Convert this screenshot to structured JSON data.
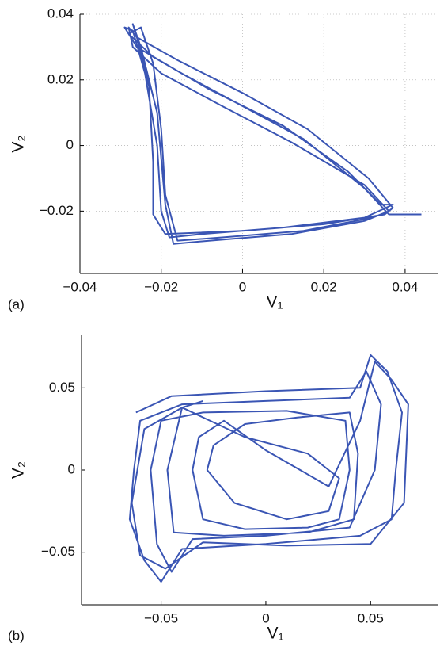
{
  "chart_data": [
    {
      "type": "line",
      "panel_label": "(a)",
      "x_label": "V₁",
      "y_label": "V₂",
      "color": "#3a55b4",
      "grid": true,
      "xlim": [
        -0.04,
        0.048
      ],
      "ylim": [
        -0.039,
        0.04
      ],
      "xticks": [
        {
          "value": -0.04,
          "label": "−0.04"
        },
        {
          "value": -0.02,
          "label": "−0.02"
        },
        0,
        0.02,
        0.04
      ],
      "yticks": [
        {
          "value": -0.02,
          "label": "−0.02"
        },
        0,
        0.02,
        0.04
      ],
      "x": [
        0.044,
        0.036,
        0.03,
        0.015,
        0.0,
        -0.015,
        -0.026,
        -0.029,
        -0.027,
        -0.024,
        -0.021,
        -0.02,
        -0.018,
        -0.01,
        0.01,
        0.03,
        0.037,
        0.034,
        0.026,
        0.01,
        -0.008,
        -0.022,
        -0.028,
        -0.025,
        -0.022,
        -0.02,
        -0.019,
        -0.016,
        -0.005,
        0.015,
        0.032,
        0.036,
        0.03,
        0.012,
        -0.005,
        -0.02,
        -0.027,
        -0.028,
        -0.026,
        -0.023,
        -0.022,
        -0.022,
        -0.019,
        0.0,
        0.02,
        0.035,
        0.037,
        0.031,
        0.016,
        0.0,
        -0.016,
        -0.026,
        -0.027,
        -0.025,
        -0.021,
        -0.019,
        -0.017,
        -0.008,
        0.012,
        0.03,
        0.034
      ],
      "values": [
        -0.021,
        -0.021,
        -0.013,
        0.002,
        0.012,
        0.022,
        0.03,
        0.036,
        0.035,
        0.022,
        0.0,
        -0.02,
        -0.028,
        -0.027,
        -0.025,
        -0.022,
        -0.018,
        -0.018,
        -0.008,
        0.006,
        0.017,
        0.027,
        0.034,
        0.036,
        0.025,
        0.005,
        -0.015,
        -0.029,
        -0.028,
        -0.026,
        -0.022,
        -0.02,
        -0.012,
        0.001,
        0.012,
        0.022,
        0.03,
        0.036,
        0.033,
        0.018,
        -0.005,
        -0.021,
        -0.027,
        -0.026,
        -0.024,
        -0.021,
        -0.019,
        -0.01,
        0.005,
        0.016,
        0.026,
        0.033,
        0.037,
        0.03,
        0.01,
        -0.018,
        -0.03,
        -0.029,
        -0.027,
        -0.023,
        -0.021
      ]
    },
    {
      "type": "line",
      "panel_label": "(b)",
      "x_label": "V₁",
      "y_label": "V₂",
      "color": "#3a55b4",
      "grid": false,
      "xlim": [
        -0.088,
        0.082
      ],
      "ylim": [
        -0.082,
        0.082
      ],
      "xticks": [
        {
          "value": -0.05,
          "label": "−0.05"
        },
        0,
        0.05
      ],
      "yticks": [
        {
          "value": -0.05,
          "label": "−0.05"
        },
        0,
        0.05
      ],
      "x": [
        -0.062,
        -0.045,
        0.0,
        0.045,
        0.05,
        0.058,
        0.065,
        0.062,
        0.06,
        0.045,
        0.0,
        -0.04,
        -0.05,
        -0.058,
        -0.065,
        -0.063,
        -0.06,
        -0.04,
        0.0,
        0.04,
        0.048,
        0.055,
        0.052,
        0.04,
        0.0,
        -0.035,
        -0.045,
        -0.052,
        -0.055,
        -0.05,
        -0.03,
        0.01,
        0.038,
        0.04,
        0.035,
        0.02,
        -0.01,
        -0.03,
        -0.035,
        -0.032,
        -0.02,
        0.0,
        0.03,
        0.045,
        0.052,
        0.06,
        0.068,
        0.066,
        0.05,
        0.01,
        -0.03,
        -0.048,
        -0.06,
        -0.064,
        -0.058,
        -0.04,
        -0.01,
        0.02,
        0.035,
        0.03,
        0.01,
        -0.015,
        -0.028,
        -0.025,
        -0.01,
        0.015,
        0.04,
        0.044,
        0.042,
        0.02,
        -0.02,
        -0.044,
        -0.047,
        -0.04,
        -0.03
      ],
      "values": [
        0.035,
        0.045,
        0.048,
        0.05,
        0.07,
        0.06,
        0.035,
        0.0,
        -0.03,
        -0.04,
        -0.045,
        -0.048,
        -0.068,
        -0.055,
        -0.03,
        0.0,
        0.03,
        0.04,
        0.042,
        0.044,
        0.06,
        0.04,
        0.0,
        -0.035,
        -0.04,
        -0.042,
        -0.062,
        -0.045,
        0.0,
        0.03,
        0.035,
        0.036,
        0.03,
        0.0,
        -0.03,
        -0.035,
        -0.036,
        -0.03,
        0.0,
        0.02,
        0.03,
        0.012,
        -0.01,
        0.03,
        0.066,
        0.055,
        0.04,
        -0.02,
        -0.045,
        -0.046,
        -0.044,
        -0.06,
        -0.052,
        -0.02,
        0.025,
        0.038,
        0.02,
        0.01,
        -0.005,
        -0.025,
        -0.03,
        -0.02,
        0.0,
        0.015,
        0.028,
        0.032,
        0.035,
        0.01,
        -0.03,
        -0.038,
        -0.04,
        -0.038,
        0.0,
        0.038,
        0.042
      ]
    }
  ]
}
